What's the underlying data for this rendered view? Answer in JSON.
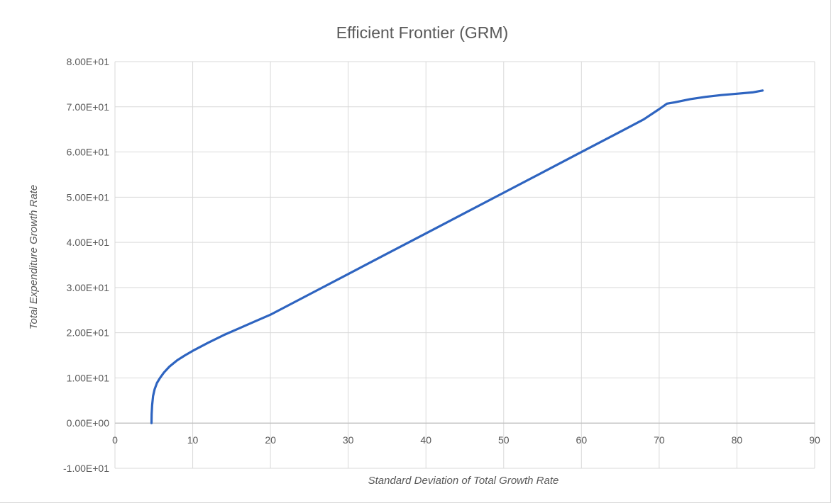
{
  "chart_data": {
    "type": "line",
    "title": "Efficient Frontier (GRM)",
    "xlabel": "Standard Deviation of Total Growth Rate",
    "ylabel": "Total Expenditure Growth Rate",
    "xlim": [
      0,
      90
    ],
    "ylim": [
      -10,
      80
    ],
    "x_ticks": [
      0,
      10,
      20,
      30,
      40,
      50,
      60,
      70,
      80,
      90
    ],
    "x_tick_labels": [
      "0",
      "10",
      "20",
      "30",
      "40",
      "50",
      "60",
      "70",
      "80",
      "90"
    ],
    "y_ticks": [
      -10,
      0,
      10,
      20,
      30,
      40,
      50,
      60,
      70,
      80
    ],
    "y_tick_labels": [
      "-1.00E+01",
      "0.00E+00",
      "1.00E+01",
      "2.00E+01",
      "3.00E+01",
      "4.00E+01",
      "5.00E+01",
      "6.00E+01",
      "7.00E+01",
      "8.00E+01"
    ],
    "grid": true,
    "legend": "none",
    "series_color": "#2e64c0",
    "grid_color": "#d9d9d9",
    "series": [
      {
        "x": [
          4.7,
          4.72,
          4.78,
          4.9,
          5.1,
          5.4,
          5.8,
          6.3,
          7.0,
          8.0,
          9.0,
          10.0,
          12.0,
          14.0,
          16.0,
          18.0,
          20.0,
          25.0,
          30.0,
          35.0,
          40.0,
          45.0,
          50.0,
          55.0,
          60.0,
          65.0,
          68.0,
          70.0,
          71.0,
          72.0,
          74.0,
          76.0,
          78.0,
          80.0,
          82.0,
          83.3
        ],
        "y": [
          0.0,
          2.0,
          4.0,
          6.0,
          7.5,
          8.9,
          10.0,
          11.2,
          12.5,
          13.9,
          15.0,
          16.0,
          17.8,
          19.5,
          21.0,
          22.5,
          24.0,
          28.5,
          33.0,
          37.5,
          42.0,
          46.5,
          51.0,
          55.5,
          60.0,
          64.5,
          67.2,
          69.5,
          70.7,
          71.0,
          71.7,
          72.2,
          72.6,
          72.9,
          73.2,
          73.6
        ]
      }
    ]
  }
}
